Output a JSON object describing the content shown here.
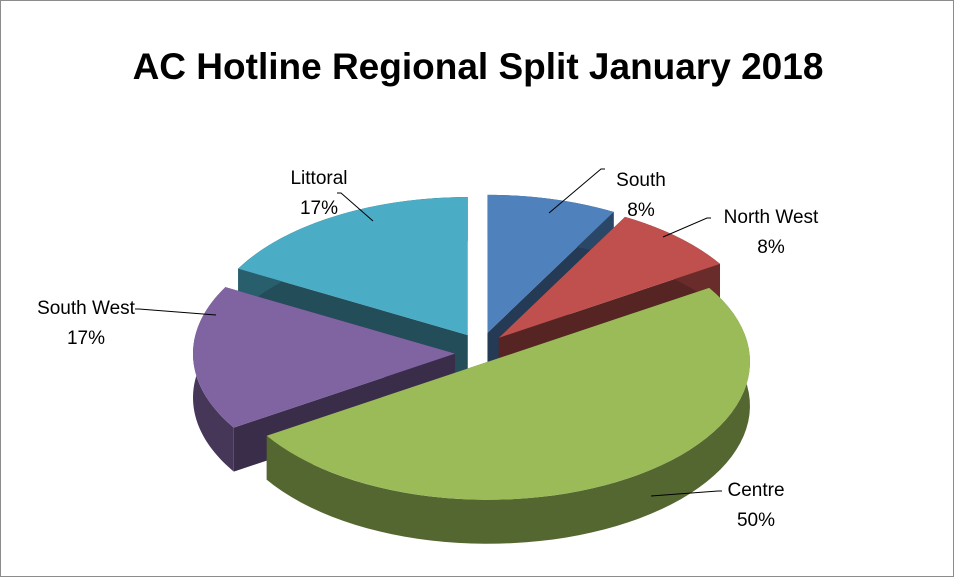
{
  "chart_data": {
    "type": "pie3d",
    "title": "AC Hotline Regional Split January 2018",
    "categories": [
      "South",
      "North West",
      "Centre",
      "South West",
      "Littoral"
    ],
    "values": [
      8,
      8,
      50,
      17,
      17
    ],
    "value_labels": [
      "8%",
      "8%",
      "50%",
      "17%",
      "17%"
    ],
    "colors": [
      "#4f81bd",
      "#c0504d",
      "#9bbb59",
      "#8064a2",
      "#4bacc6"
    ]
  }
}
